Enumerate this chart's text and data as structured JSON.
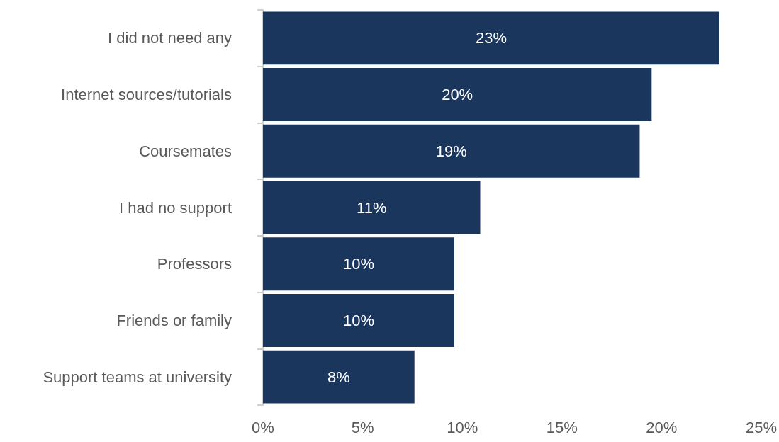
{
  "chart_data": {
    "type": "bar",
    "orientation": "horizontal",
    "categories": [
      "I did not need any",
      "Internet sources/tutorials",
      "Coursemates",
      "I had no support",
      "Professors",
      "Friends or family",
      "Support teams at university"
    ],
    "values": [
      22.9,
      19.5,
      18.9,
      10.9,
      9.6,
      9.6,
      7.6
    ],
    "value_labels": [
      "23%",
      "20%",
      "19%",
      "11%",
      "10%",
      "10%",
      "8%"
    ],
    "color": "#1b365d",
    "xlim": [
      0,
      25
    ],
    "xticks": [
      {
        "value": 0,
        "label": "0%"
      },
      {
        "value": 5,
        "label": "5%"
      },
      {
        "value": 10,
        "label": "10%"
      },
      {
        "value": 15,
        "label": "15%"
      },
      {
        "value": 20,
        "label": "20%"
      },
      {
        "value": 25,
        "label": "25%"
      }
    ],
    "grid": false
  }
}
